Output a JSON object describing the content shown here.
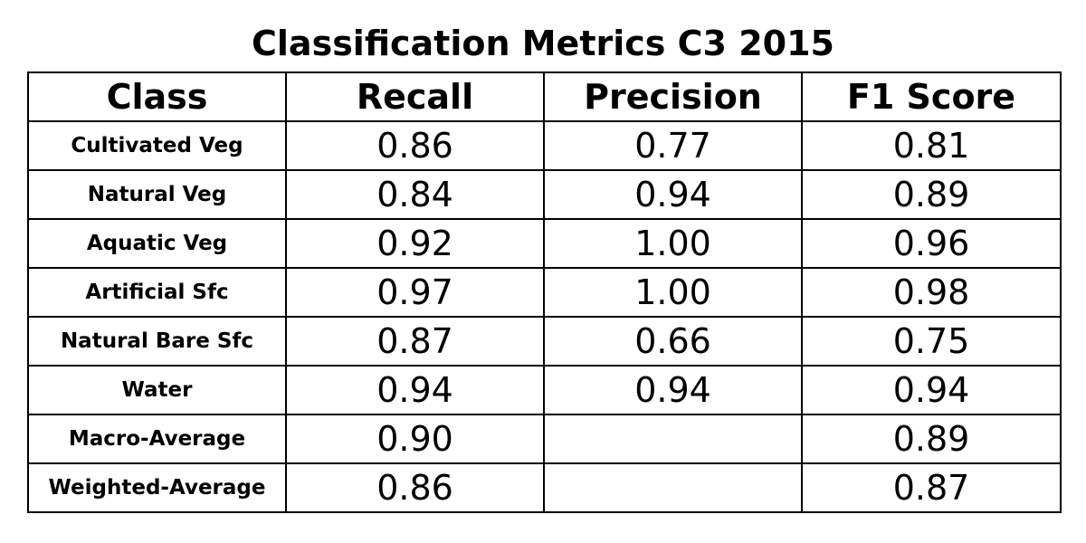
{
  "chart_data": {
    "type": "table",
    "title": "Classification Metrics C3 2015",
    "columns": [
      "Class",
      "Recall",
      "Precision",
      "F1 Score"
    ],
    "rows": [
      {
        "class": "Cultivated Veg",
        "recall": "0.86",
        "precision": "0.77",
        "f1": "0.81"
      },
      {
        "class": "Natural Veg",
        "recall": "0.84",
        "precision": "0.94",
        "f1": "0.89"
      },
      {
        "class": "Aquatic Veg",
        "recall": "0.92",
        "precision": "1.00",
        "f1": "0.96"
      },
      {
        "class": "Artificial Sfc",
        "recall": "0.97",
        "precision": "1.00",
        "f1": "0.98"
      },
      {
        "class": "Natural Bare Sfc",
        "recall": "0.87",
        "precision": "0.66",
        "f1": "0.75"
      },
      {
        "class": "Water",
        "recall": "0.94",
        "precision": "0.94",
        "f1": "0.94"
      },
      {
        "class": "Macro-Average",
        "recall": "0.90",
        "precision": "",
        "f1": "0.89"
      },
      {
        "class": "Weighted-Average",
        "recall": "0.86",
        "precision": "",
        "f1": "0.87"
      }
    ]
  }
}
